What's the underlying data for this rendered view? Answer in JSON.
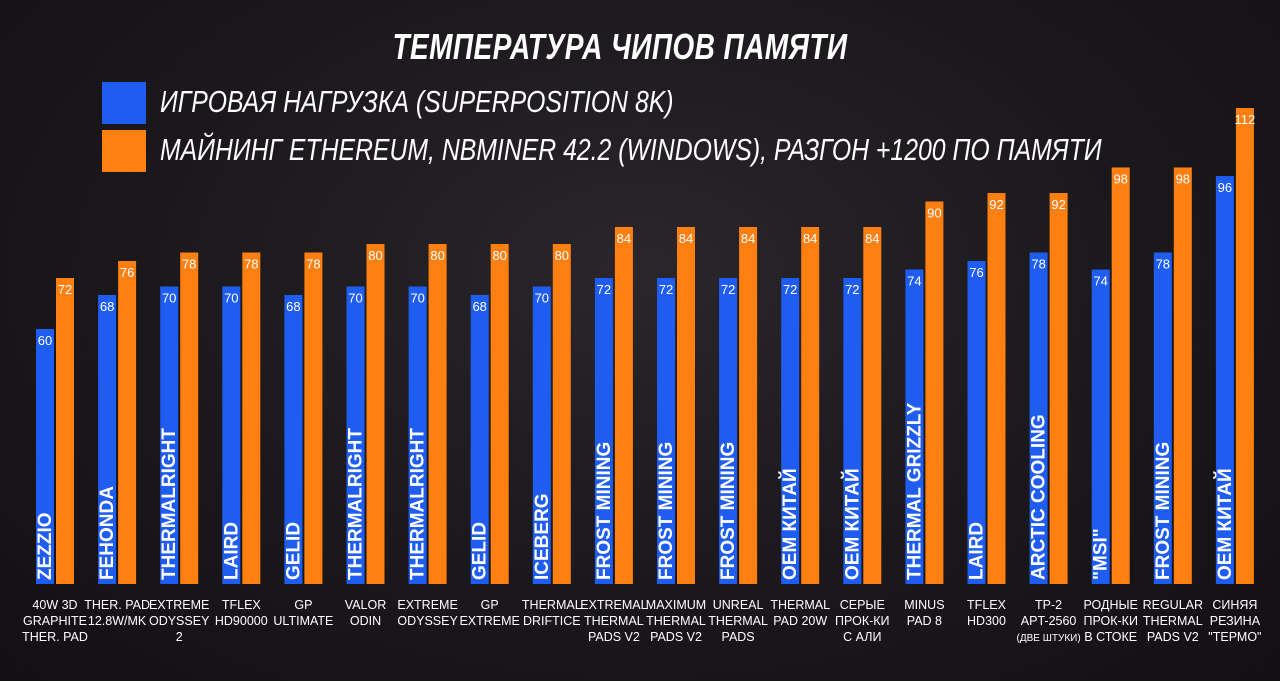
{
  "chart_data": {
    "type": "bar",
    "title": "ТЕМПЕРАТУРА ЧИПОВ ПАМЯТИ",
    "legend_placement": "top-left",
    "grid": false,
    "series": [
      {
        "name": "ИГРОВАЯ НАГРУЗКА (SUPERPOSITION 8K)",
        "color": "#1f5cf0",
        "values": [
          60,
          68,
          70,
          70,
          68,
          70,
          70,
          68,
          70,
          72,
          72,
          72,
          72,
          72,
          74,
          76,
          78,
          74,
          78,
          96
        ]
      },
      {
        "name": "МАЙНИНГ ETHEREUM, NBMINER 42.2 (WINDOWS), РАЗГОН +1200 ПО ПАМЯТИ",
        "color": "#ff7f10",
        "values": [
          72,
          76,
          78,
          78,
          78,
          80,
          80,
          80,
          80,
          84,
          84,
          84,
          84,
          84,
          90,
          92,
          92,
          98,
          98,
          112
        ]
      }
    ],
    "brands": [
      "ZEZZIO",
      "FEHONDA",
      "THERMALRIGHT",
      "LAIRD",
      "GELID",
      "THERMALRIGHT",
      "THERMALRIGHT",
      "GELID",
      "ICEBERG",
      "FROST MINING",
      "FROST MINING",
      "FROST MINING",
      "OEM КИТАЙ",
      "OEM КИТАЙ",
      "THERMAL GRIZZLY",
      "LAIRD",
      "ARCTIC COOLING",
      "\"MSI\"",
      "FROST MINING",
      "OEM КИТАЙ"
    ],
    "categories": [
      [
        "40W 3D",
        "GRAPHITE",
        "THER. PAD"
      ],
      [
        "THER. PAD",
        "12.8W/MK"
      ],
      [
        "EXTREME",
        "ODYSSEY",
        "2"
      ],
      [
        "TFLEX",
        "HD90000"
      ],
      [
        "GP",
        "ULTIMATE"
      ],
      [
        "VALOR",
        "ODIN"
      ],
      [
        "EXTREME",
        "ODYSSEY"
      ],
      [
        "GP",
        "EXTREME"
      ],
      [
        "THERMAL",
        "DRIFTICE"
      ],
      [
        "EXTREMAL",
        "THERMAL",
        "PADS V2"
      ],
      [
        "MAXIMUM",
        "THERMAL",
        "PADS V2"
      ],
      [
        "UNREAL",
        "THERMAL",
        "PADS"
      ],
      [
        "THERMAL",
        "PAD 20W"
      ],
      [
        "СЕРЫЕ",
        "ПРОК-КИ",
        "С АЛИ"
      ],
      [
        "MINUS",
        "PAD 8"
      ],
      [
        "TFLEX",
        "HD300"
      ],
      [
        "TP-2",
        "APT-2560",
        "(ДВЕ ШТУКИ)"
      ],
      [
        "РОДНЫЕ",
        "ПРОК-КИ",
        "В СТОКЕ"
      ],
      [
        "REGULAR",
        "THERMAL",
        "PADS V2"
      ],
      [
        "СИНЯЯ",
        "РЕЗИНА",
        "\"ТЕРМО\""
      ]
    ]
  }
}
